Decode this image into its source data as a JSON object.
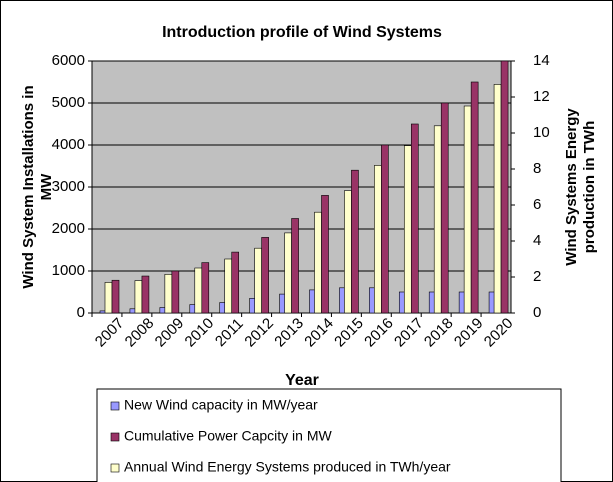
{
  "chart_data": {
    "type": "bar",
    "title": "Introduction profile of Wind Systems",
    "xlabel": "Year",
    "ylabel_lines": [
      "Wind System Installations in",
      "MW"
    ],
    "y2label_lines": [
      "Wind Systems Energy",
      "production in TWh"
    ],
    "categories": [
      "2007",
      "2008",
      "2009",
      "2010",
      "2011",
      "2012",
      "2013",
      "2014",
      "2015",
      "2016",
      "2017",
      "2018",
      "2019",
      "2020"
    ],
    "series": [
      {
        "name": "New Wind capacity in MW/year",
        "color": "#9999ff",
        "values": [
          50,
          100,
          130,
          200,
          250,
          350,
          450,
          550,
          600,
          600,
          500,
          500,
          500,
          500
        ]
      },
      {
        "name": "Cumulative Power Capcity in MW",
        "color": "#993366",
        "values": [
          780,
          880,
          1000,
          1200,
          1450,
          1800,
          2250,
          2800,
          3400,
          4000,
          4500,
          5000,
          5500,
          6000
        ]
      },
      {
        "name": "Annual Wind Energy Systems produced in TWh/year",
        "color": "#ffffcc",
        "axis": "y2",
        "values": [
          1.7,
          1.8,
          2.15,
          2.5,
          3,
          3.6,
          4.45,
          5.6,
          6.8,
          8.2,
          9.3,
          10.4,
          11.5,
          12.7
        ]
      }
    ],
    "ylim": [
      0,
      6000
    ],
    "yticks": [
      0,
      1000,
      2000,
      3000,
      4000,
      5000,
      6000
    ],
    "y2lim": [
      0,
      14
    ],
    "y2ticks": [
      0,
      2,
      4,
      6,
      8,
      10,
      12,
      14
    ],
    "grid": true,
    "plot_background": "#c0c0c0"
  }
}
